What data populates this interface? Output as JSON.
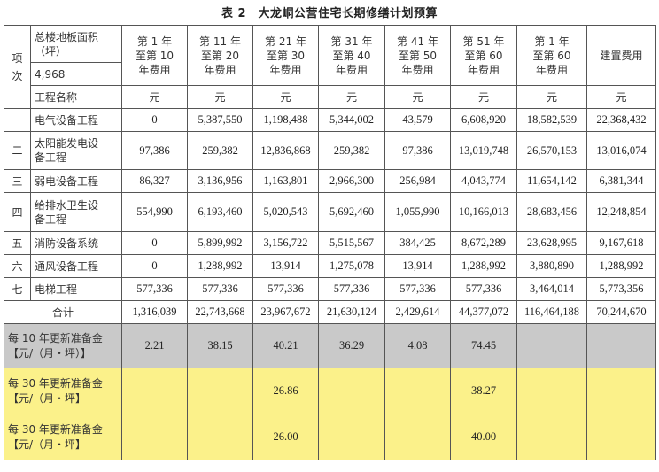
{
  "title": "表 2　大龙峒公营住宅长期修缮计划预算",
  "header": {
    "item_col": [
      "项",
      "次"
    ],
    "area_label": "总楼地板面积（坪）",
    "area_value": "4,968",
    "name_label": "工程名称",
    "period_cols": [
      [
        "第 1 年",
        "至第 10",
        "年费用"
      ],
      [
        "第 11 年",
        "至第 20",
        "年费用"
      ],
      [
        "第 21 年",
        "至第 30",
        "年费用"
      ],
      [
        "第 31 年",
        "至第 40",
        "年费用"
      ],
      [
        "第 41 年",
        "至第 50",
        "年费用"
      ],
      [
        "第 51 年",
        "至第 60",
        "年费用"
      ],
      [
        "第 1 年",
        "至第 60",
        "年费用"
      ]
    ],
    "build_cost": "建置费用",
    "unit": "元"
  },
  "rows": [
    {
      "idx": "一",
      "name": [
        "电气设备工程"
      ],
      "values": [
        "0",
        "5,387,550",
        "1,198,488",
        "5,344,002",
        "43,579",
        "6,608,920",
        "18,582,539",
        "22,368,432"
      ]
    },
    {
      "idx": "二",
      "name": [
        "太阳能发电设",
        "备工程"
      ],
      "values": [
        "97,386",
        "259,382",
        "12,836,868",
        "259,382",
        "97,386",
        "13,019,748",
        "26,570,153",
        "13,016,074"
      ]
    },
    {
      "idx": "三",
      "name": [
        "弱电设备工程"
      ],
      "values": [
        "86,327",
        "3,136,956",
        "1,163,801",
        "2,966,300",
        "256,984",
        "4,043,774",
        "11,654,142",
        "6,381,344"
      ]
    },
    {
      "idx": "四",
      "name": [
        "给排水卫生设",
        "备工程"
      ],
      "values": [
        "554,990",
        "6,193,460",
        "5,020,543",
        "5,692,460",
        "1,055,990",
        "10,166,013",
        "28,683,456",
        "12,248,854"
      ]
    },
    {
      "idx": "五",
      "name": [
        "消防设备系统"
      ],
      "values": [
        "0",
        "5,899,992",
        "3,156,722",
        "5,515,567",
        "384,425",
        "8,672,289",
        "23,628,995",
        "9,167,618"
      ]
    },
    {
      "idx": "六",
      "name": [
        "通风设备工程"
      ],
      "values": [
        "0",
        "1,288,992",
        "13,914",
        "1,275,078",
        "13,914",
        "1,288,992",
        "3,880,890",
        "1,288,992"
      ]
    },
    {
      "idx": "七",
      "name": [
        "电梯工程"
      ],
      "values": [
        "577,336",
        "577,336",
        "577,336",
        "577,336",
        "577,336",
        "577,336",
        "3,464,014",
        "5,773,356"
      ]
    }
  ],
  "total": {
    "label": "合计",
    "values": [
      "1,316,039",
      "22,743,668",
      "23,967,672",
      "21,630,124",
      "2,429,614",
      "44,377,072",
      "116,464,188",
      "70,244,670"
    ]
  },
  "reserve_10": {
    "label": [
      "每 10 年更新准备金",
      "【元/（月・坪）】"
    ],
    "values": [
      "2.21",
      "38.15",
      "40.21",
      "36.29",
      "4.08",
      "74.45",
      "",
      ""
    ]
  },
  "reserve_30_a": {
    "label": [
      "每 30 年更新准备金",
      "【元/（月・坪】"
    ],
    "values": [
      "",
      "",
      "26.86",
      "",
      "",
      "38.27",
      "",
      ""
    ]
  },
  "reserve_30_b": {
    "label": [
      "每 30 年更新准备金",
      "【元/（月・坪】"
    ],
    "values": [
      "",
      "",
      "26.00",
      "",
      "",
      "40.00",
      "",
      ""
    ]
  },
  "colors": {
    "gray_row": "#c9c9c9",
    "yellow_row": "#fbf18a",
    "border": "#555555"
  }
}
